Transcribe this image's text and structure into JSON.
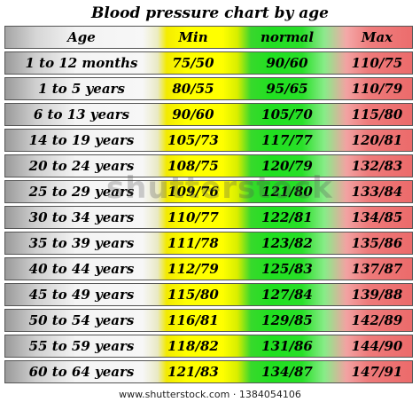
{
  "chart_data": {
    "type": "table",
    "title": "Blood pressure chart by age",
    "columns": [
      "Age",
      "Min",
      "normal",
      "Max"
    ],
    "rows": [
      [
        "1 to 12 months",
        "75/50",
        "90/60",
        "110/75"
      ],
      [
        "1 to 5 years",
        "80/55",
        "95/65",
        "110/79"
      ],
      [
        "6 to 13 years",
        "90/60",
        "105/70",
        "115/80"
      ],
      [
        "14 to 19 years",
        "105/73",
        "117/77",
        "120/81"
      ],
      [
        "20 to 24 years",
        "108/75",
        "120/79",
        "132/83"
      ],
      [
        "25 to 29 years",
        "109/76",
        "121/80",
        "133/84"
      ],
      [
        "30 to 34 years",
        "110/77",
        "122/81",
        "134/85"
      ],
      [
        "35 to 39 years",
        "111/78",
        "123/82",
        "135/86"
      ],
      [
        "40 to 44 years",
        "112/79",
        "125/83",
        "137/87"
      ],
      [
        "45 to 49 years",
        "115/80",
        "127/84",
        "139/88"
      ],
      [
        "50 to 54 years",
        "116/81",
        "129/85",
        "142/89"
      ],
      [
        "55 to 59 years",
        "118/82",
        "131/86",
        "144/90"
      ],
      [
        "60 to 64 years",
        "121/83",
        "134/87",
        "147/91"
      ]
    ],
    "column_colors": {
      "age": "#f4f4f4",
      "min": "#ffff00",
      "normal": "#22de22",
      "max": "#ee7a7a"
    }
  },
  "watermark": "shutterstock",
  "footer": "www.shutterstock.com · 1384054106"
}
